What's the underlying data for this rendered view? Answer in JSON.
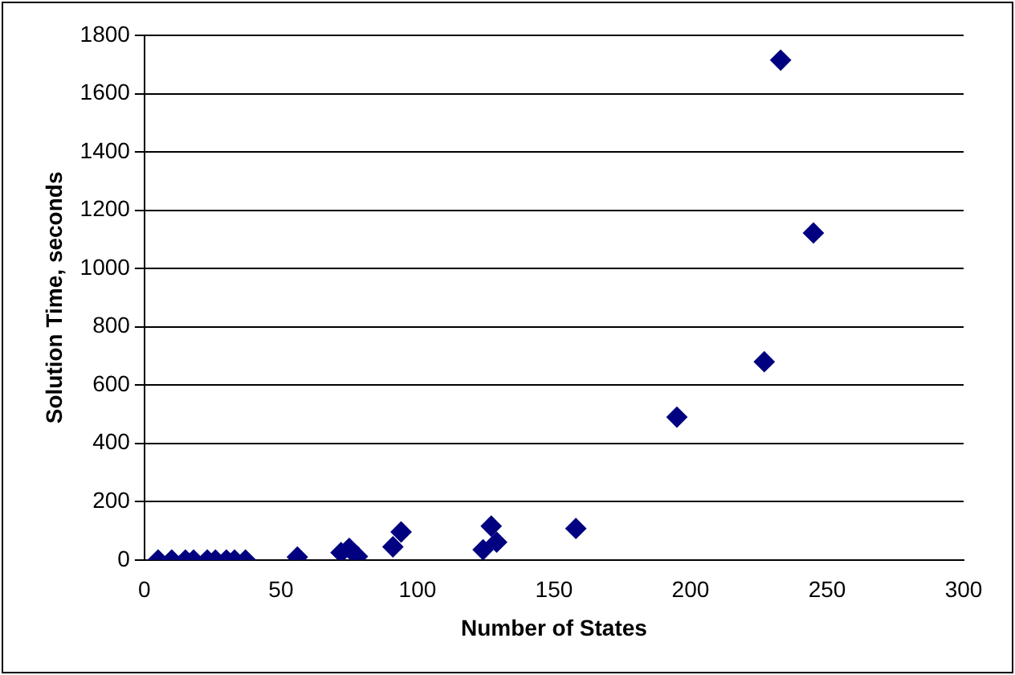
{
  "chart_data": {
    "type": "scatter",
    "xlabel": "Number of States",
    "ylabel": "Solution Time, seconds",
    "x": [
      5,
      10,
      15,
      18,
      23,
      26,
      30,
      33,
      37,
      56,
      72,
      75,
      78,
      91,
      94,
      124,
      127,
      129,
      158,
      195,
      227,
      233,
      245
    ],
    "series": [
      {
        "color": "#000080",
        "values": [
          0,
          0,
          0,
          0,
          0,
          0,
          0,
          0,
          0,
          10,
          25,
          40,
          12,
          45,
          96,
          35,
          116,
          61,
          108,
          490,
          680,
          1715,
          1122
        ]
      }
    ],
    "xlim": [
      0,
      300
    ],
    "xticks": [
      0,
      50,
      100,
      150,
      200,
      250,
      300
    ],
    "ylim": [
      0,
      1800
    ],
    "yticks": [
      0,
      200,
      400,
      600,
      800,
      1000,
      1200,
      1400,
      1600,
      1800
    ],
    "grid": "y",
    "marker": "diamond",
    "legend": false
  }
}
